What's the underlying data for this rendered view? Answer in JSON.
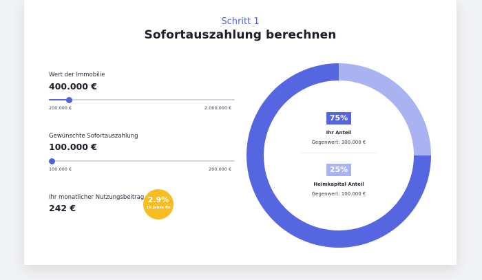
{
  "header": {
    "step": "Schritt 1",
    "title": "Sofortauszahlung berechnen"
  },
  "property": {
    "label": "Wert der Immobilie",
    "value": "400.000 €",
    "min_label": "200.000 €",
    "max_label": "2.000.000 €",
    "slider_fraction": 0.111
  },
  "payout": {
    "label": "Gewünschte Sofortauszahlung",
    "value": "100.000 €",
    "min_label": "100.000 €",
    "max_label": "200.000 €",
    "slider_fraction": 0.0
  },
  "fee": {
    "label": "Ihr monatlicher Nutzungsbeitrag",
    "value": "242 €",
    "rate": "2.9%",
    "rate_note": "10 Jahre fix"
  },
  "chart_data": {
    "type": "pie",
    "categories": [
      "Ihr Anteil",
      "Heimkapital Anteil"
    ],
    "values": [
      75,
      25
    ],
    "labels": [
      "75%",
      "25%"
    ],
    "subtexts": [
      "Gegenwert: 300.000 €",
      "Gegenwert: 100.000 €"
    ],
    "colors": [
      "#5566e0",
      "#aab3f1"
    ]
  }
}
